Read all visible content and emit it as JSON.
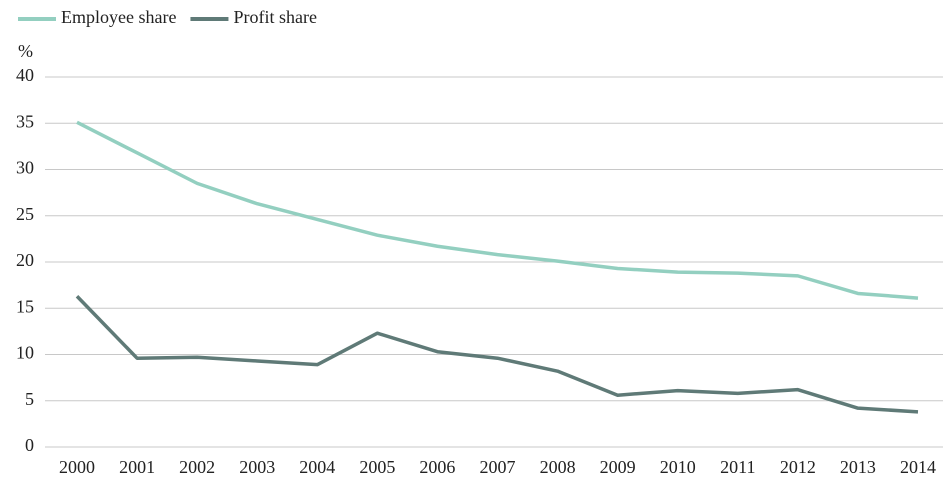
{
  "chart_data": {
    "type": "line",
    "y_unit": "%",
    "categories": [
      "2000",
      "2001",
      "2002",
      "2003",
      "2004",
      "2005",
      "2006",
      "2007",
      "2008",
      "2009",
      "2010",
      "2011",
      "2012",
      "2013",
      "2014"
    ],
    "series": [
      {
        "name": "Employee share",
        "color": "#93cfc0",
        "values": [
          35.1,
          31.8,
          28.5,
          26.3,
          24.6,
          22.9,
          21.7,
          20.8,
          20.1,
          19.3,
          18.9,
          18.8,
          18.5,
          16.6,
          16.1
        ]
      },
      {
        "name": "Profit share",
        "color": "#5f7a77",
        "values": [
          16.3,
          9.6,
          9.7,
          9.3,
          8.9,
          12.3,
          10.3,
          9.6,
          8.2,
          5.6,
          6.1,
          5.8,
          6.2,
          4.2,
          3.8
        ]
      }
    ],
    "ylim": [
      0,
      40
    ],
    "yticks": [
      0,
      5,
      10,
      15,
      20,
      25,
      30,
      35,
      40
    ],
    "grid": true,
    "legend": "top-left"
  }
}
